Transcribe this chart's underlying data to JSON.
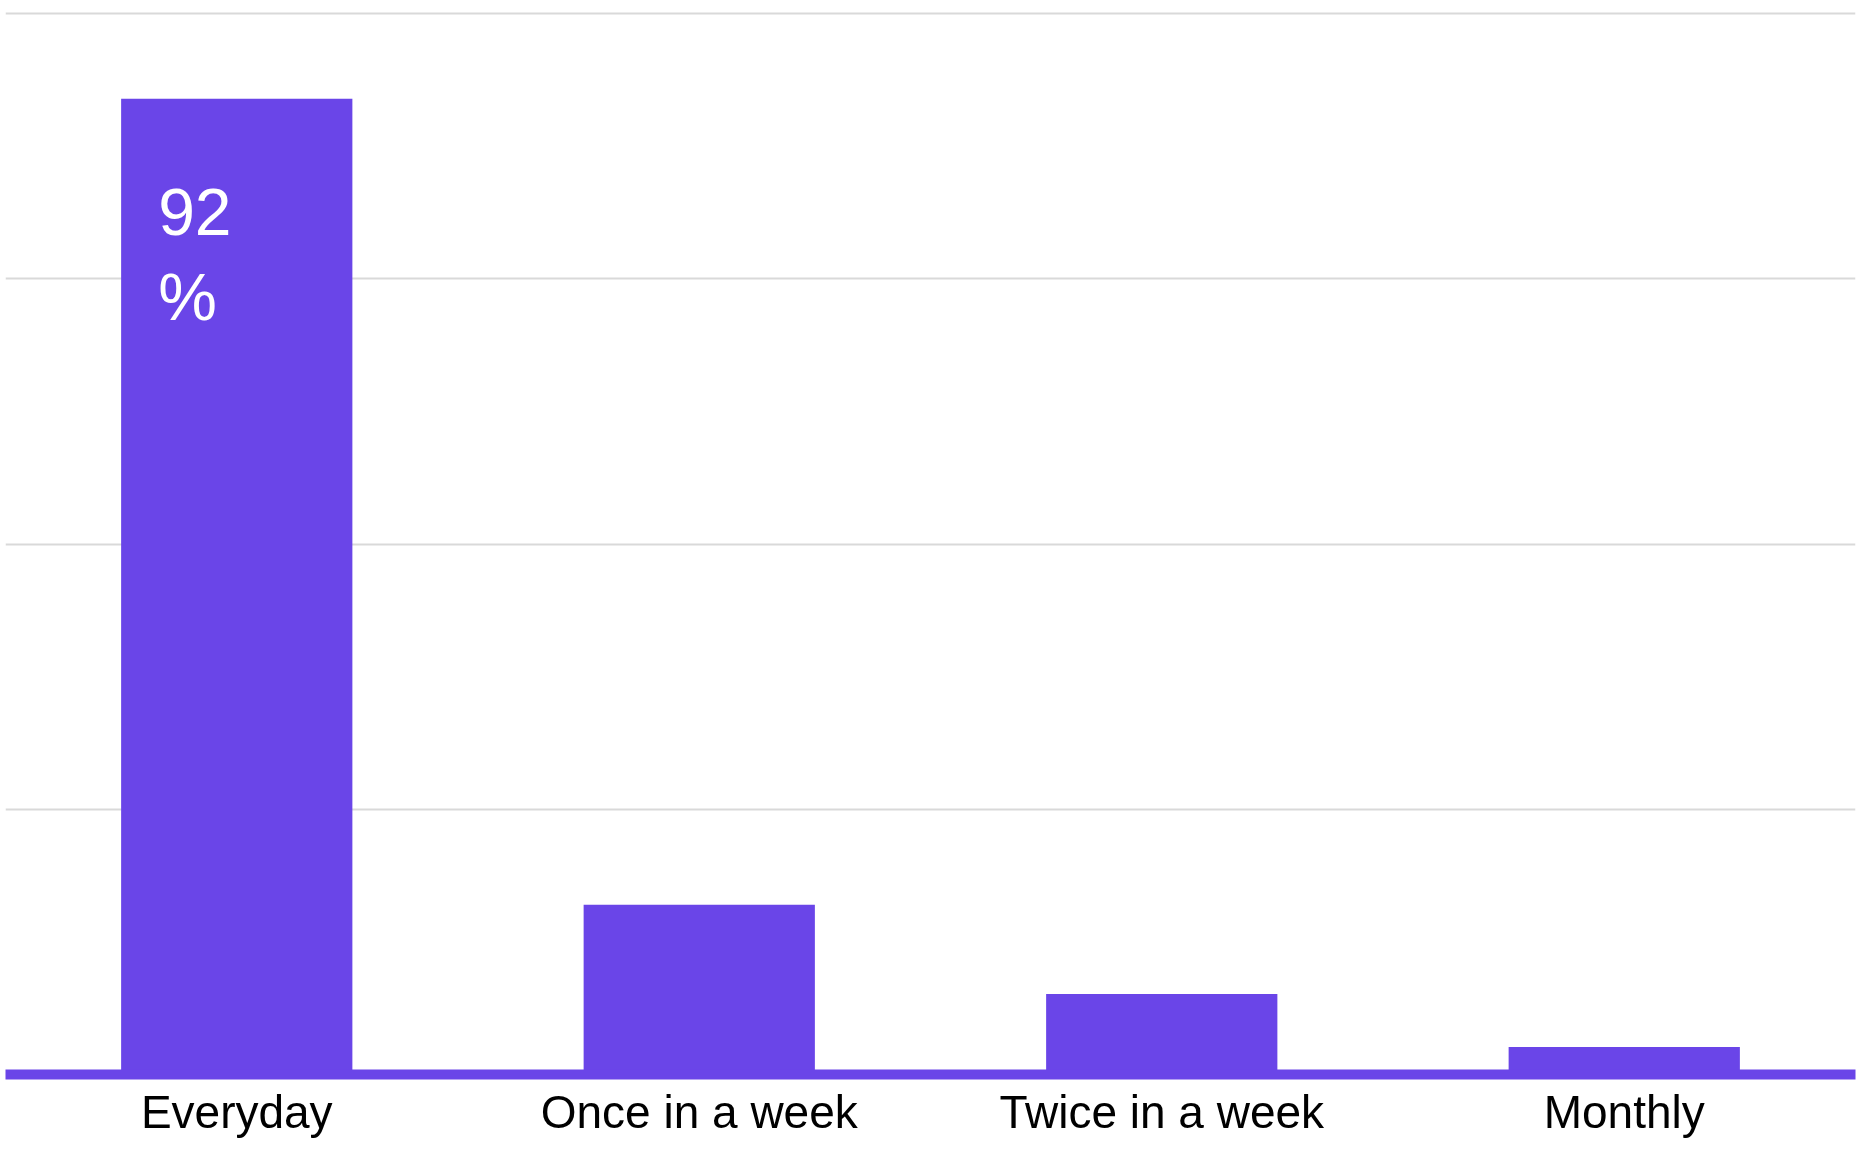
{
  "chart_data": {
    "type": "bar",
    "categories": [
      "Everyday",
      "Once in a week",
      "Twice in a week",
      "Monthly"
    ],
    "values": [
      92,
      16,
      7.6,
      2.6
    ],
    "color": "#6a45e8",
    "value_labels": [
      "92 %",
      null,
      null,
      null
    ],
    "ylim": [
      0,
      100.5
    ],
    "yticks": [
      {
        "value": 0,
        "label": null
      },
      {
        "value": 25,
        "label": null
      },
      {
        "value": 50,
        "label": null
      },
      {
        "value": 75,
        "label": null
      },
      {
        "value": 100,
        "label": null
      }
    ],
    "grid": "y",
    "tick_labels": "x"
  }
}
